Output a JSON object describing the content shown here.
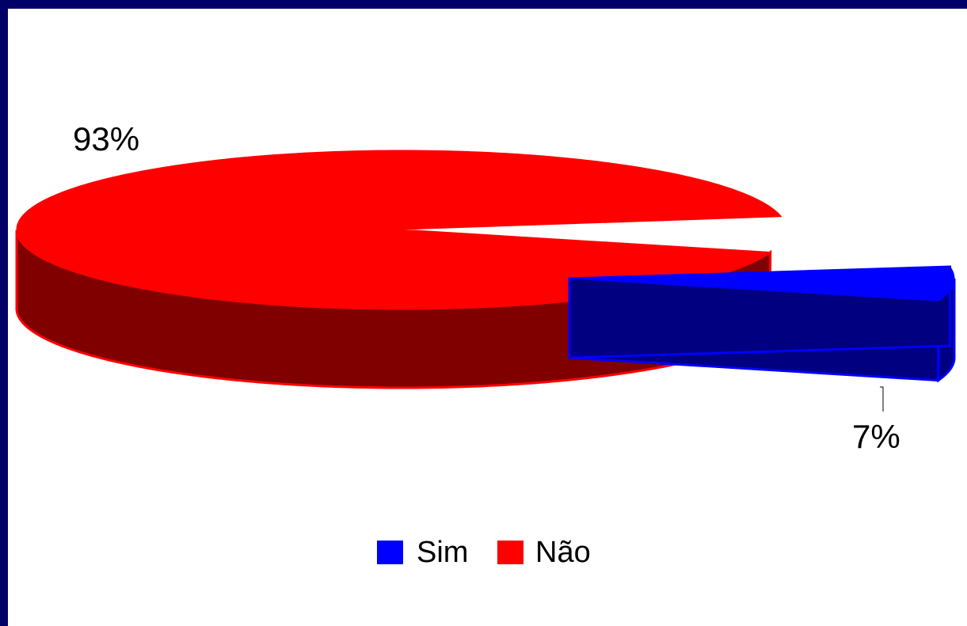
{
  "chart_data": {
    "type": "pie",
    "style": "3d-exploded",
    "categories": [
      "Sim",
      "Não"
    ],
    "values": [
      7,
      93
    ],
    "data_labels": [
      "7%",
      "93%"
    ],
    "colors": {
      "Sim": "#0000ff",
      "Não": "#ff0000"
    },
    "side_colors": {
      "Sim": "#000080",
      "Não": "#800000"
    },
    "legend": {
      "position": "bottom",
      "entries": [
        "Sim",
        "Não"
      ]
    }
  },
  "page": {
    "border_color": "#000066",
    "background": "#ffffff"
  }
}
